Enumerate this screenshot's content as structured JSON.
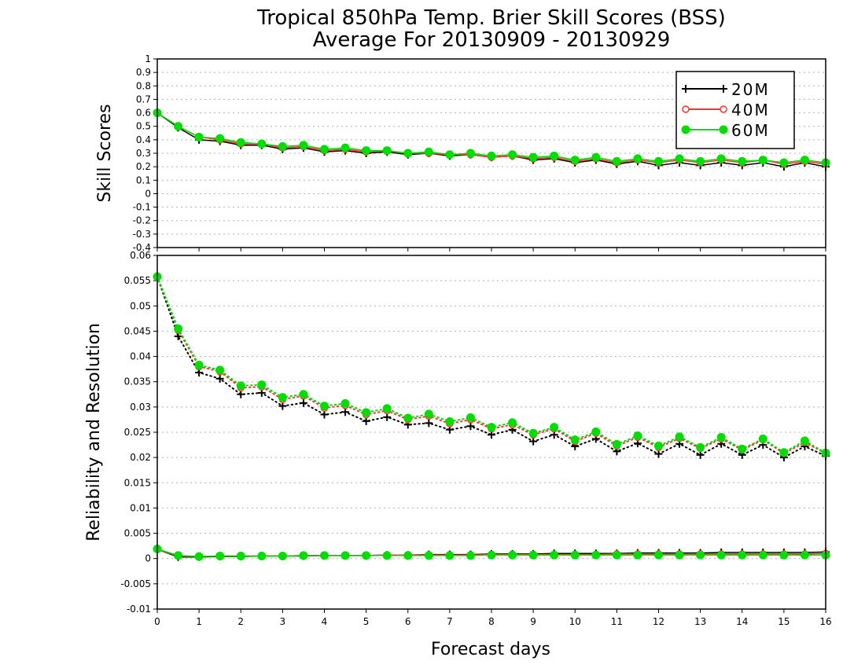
{
  "title_line1": "Tropical 850hPa Temp. Brier Skill Scores (BSS)",
  "title_line2": "Average For 20130909 - 20130929",
  "xlabel": "Forecast days",
  "colors": {
    "s20M": "#000000",
    "s40M": "#ff3030",
    "s60M": "#00dd00",
    "grid": "#b0b0b0"
  },
  "legend": [
    "20M",
    "40M",
    "60M"
  ],
  "chart_data": [
    {
      "type": "line",
      "panel": "top",
      "ylabel": "Skill Scores",
      "xlim": [
        0,
        16
      ],
      "ylim": [
        -0.4,
        1
      ],
      "xticks": [
        "0",
        "1",
        "2",
        "3",
        "4",
        "5",
        "6",
        "7",
        "8",
        "9",
        "10",
        "11",
        "12",
        "13",
        "14",
        "15",
        "16"
      ],
      "yticks": [
        "-0.4",
        "-0.3",
        "-0.2",
        "-0.1",
        "0",
        "0.1",
        "0.2",
        "0.3",
        "0.4",
        "0.5",
        "0.6",
        "0.7",
        "0.8",
        "0.9",
        "1"
      ],
      "grid": true,
      "legend_position": "top-right",
      "x": [
        0,
        0.5,
        1,
        1.5,
        2,
        2.5,
        3,
        3.5,
        4,
        4.5,
        5,
        5.5,
        6,
        6.5,
        7,
        7.5,
        8,
        8.5,
        9,
        9.5,
        10,
        10.5,
        11,
        11.5,
        12,
        12.5,
        13,
        13.5,
        14,
        14.5,
        15,
        15.5,
        16
      ],
      "series": [
        {
          "name": "20M",
          "marker": "plus",
          "values": [
            0.6,
            0.49,
            0.4,
            0.39,
            0.36,
            0.36,
            0.33,
            0.34,
            0.31,
            0.32,
            0.3,
            0.31,
            0.29,
            0.3,
            0.28,
            0.29,
            0.27,
            0.28,
            0.25,
            0.26,
            0.23,
            0.25,
            0.22,
            0.24,
            0.21,
            0.23,
            0.21,
            0.23,
            0.21,
            0.23,
            0.2,
            0.23,
            0.2
          ]
        },
        {
          "name": "40M",
          "marker": "open-circle",
          "values": [
            0.6,
            0.5,
            0.42,
            0.4,
            0.37,
            0.37,
            0.34,
            0.35,
            0.32,
            0.33,
            0.31,
            0.32,
            0.3,
            0.3,
            0.29,
            0.29,
            0.27,
            0.28,
            0.26,
            0.27,
            0.24,
            0.26,
            0.23,
            0.25,
            0.23,
            0.25,
            0.23,
            0.25,
            0.23,
            0.25,
            0.22,
            0.24,
            0.22
          ]
        },
        {
          "name": "60M",
          "marker": "filled-circle",
          "values": [
            0.6,
            0.5,
            0.42,
            0.41,
            0.38,
            0.37,
            0.35,
            0.36,
            0.33,
            0.34,
            0.32,
            0.32,
            0.3,
            0.31,
            0.29,
            0.3,
            0.28,
            0.29,
            0.27,
            0.28,
            0.25,
            0.27,
            0.24,
            0.26,
            0.24,
            0.26,
            0.24,
            0.26,
            0.24,
            0.25,
            0.23,
            0.25,
            0.23
          ]
        }
      ]
    },
    {
      "type": "line",
      "panel": "bottom",
      "ylabel": "Reliability and Resolution",
      "xlabel": "Forecast days",
      "xlim": [
        0,
        16
      ],
      "ylim": [
        -0.01,
        0.06
      ],
      "xticks": [
        "0",
        "1",
        "2",
        "3",
        "4",
        "5",
        "6",
        "7",
        "8",
        "9",
        "10",
        "11",
        "12",
        "13",
        "14",
        "15",
        "16"
      ],
      "yticks": [
        "-0.01",
        "-0.005",
        "0",
        "0.005",
        "0.01",
        "0.015",
        "0.02",
        "0.025",
        "0.03",
        "0.035",
        "0.04",
        "0.045",
        "0.05",
        "0.055",
        "0.06"
      ],
      "grid": true,
      "x": [
        0,
        0.5,
        1,
        1.5,
        2,
        2.5,
        3,
        3.5,
        4,
        4.5,
        5,
        5.5,
        6,
        6.5,
        7,
        7.5,
        8,
        8.5,
        9,
        9.5,
        10,
        10.5,
        11,
        11.5,
        12,
        12.5,
        13,
        13.5,
        14,
        14.5,
        15,
        15.5,
        16
      ],
      "series": [
        {
          "name": "20M",
          "kind": "resolution",
          "line": "dotted",
          "marker": "plus",
          "values": [
            0.0558,
            0.044,
            0.0368,
            0.0356,
            0.0325,
            0.0328,
            0.0302,
            0.0308,
            0.0285,
            0.029,
            0.0272,
            0.028,
            0.0265,
            0.0268,
            0.0255,
            0.0262,
            0.0245,
            0.0255,
            0.0232,
            0.0245,
            0.0222,
            0.0237,
            0.0212,
            0.0228,
            0.0207,
            0.0227,
            0.0205,
            0.0227,
            0.0205,
            0.0225,
            0.02,
            0.0222,
            0.0203
          ]
        },
        {
          "name": "40M",
          "kind": "resolution",
          "line": "dotted",
          "marker": "open-circle",
          "values": [
            0.0558,
            0.0452,
            0.038,
            0.037,
            0.0338,
            0.034,
            0.0315,
            0.0322,
            0.0298,
            0.0303,
            0.0285,
            0.0293,
            0.0275,
            0.0282,
            0.0267,
            0.0275,
            0.0257,
            0.0265,
            0.0245,
            0.0257,
            0.0232,
            0.0248,
            0.0223,
            0.024,
            0.022,
            0.0238,
            0.0218,
            0.0237,
            0.0215,
            0.0235,
            0.0208,
            0.023,
            0.0208
          ]
        },
        {
          "name": "60M",
          "kind": "resolution",
          "line": "dotted",
          "marker": "filled-circle",
          "values": [
            0.0558,
            0.0455,
            0.0383,
            0.0373,
            0.0342,
            0.0344,
            0.0319,
            0.0325,
            0.0302,
            0.0307,
            0.0289,
            0.0297,
            0.0278,
            0.0286,
            0.0271,
            0.0279,
            0.026,
            0.0269,
            0.0248,
            0.026,
            0.0235,
            0.0251,
            0.0226,
            0.0243,
            0.0223,
            0.0241,
            0.022,
            0.024,
            0.0217,
            0.0237,
            0.021,
            0.0233,
            0.0209
          ]
        },
        {
          "name": "20M",
          "kind": "reliability",
          "line": "solid",
          "marker": "plus",
          "values": [
            0.0018,
            0.0003,
            0.0003,
            0.0004,
            0.0004,
            0.0005,
            0.0005,
            0.0005,
            0.0006,
            0.0006,
            0.0006,
            0.0007,
            0.0007,
            0.0008,
            0.0008,
            0.0008,
            0.0009,
            0.0009,
            0.0009,
            0.001,
            0.001,
            0.001,
            0.001,
            0.0011,
            0.0011,
            0.0011,
            0.0011,
            0.0012,
            0.0012,
            0.0012,
            0.0012,
            0.0012,
            0.0013
          ]
        },
        {
          "name": "40M",
          "kind": "reliability",
          "line": "solid",
          "marker": "open-circle",
          "values": [
            0.0018,
            0.0005,
            0.0004,
            0.0005,
            0.0005,
            0.0005,
            0.0005,
            0.0006,
            0.0006,
            0.0006,
            0.0006,
            0.0007,
            0.0007,
            0.0007,
            0.0007,
            0.0007,
            0.0008,
            0.0008,
            0.0008,
            0.0008,
            0.0008,
            0.0008,
            0.0009,
            0.0009,
            0.0009,
            0.0009,
            0.0009,
            0.0009,
            0.0009,
            0.0009,
            0.0009,
            0.0009,
            0.001
          ]
        },
        {
          "name": "60M",
          "kind": "reliability",
          "line": "solid",
          "marker": "filled-circle",
          "values": [
            0.0019,
            0.0006,
            0.0004,
            0.0005,
            0.0005,
            0.0005,
            0.0005,
            0.0006,
            0.0006,
            0.0006,
            0.0006,
            0.0006,
            0.0006,
            0.0006,
            0.0006,
            0.0006,
            0.0007,
            0.0007,
            0.0007,
            0.0007,
            0.0007,
            0.0007,
            0.0007,
            0.0007,
            0.0007,
            0.0007,
            0.0007,
            0.0007,
            0.0007,
            0.0007,
            0.0007,
            0.0007,
            0.0007
          ]
        }
      ]
    }
  ]
}
